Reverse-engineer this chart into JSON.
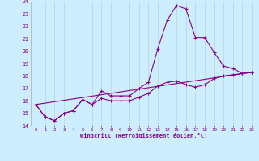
{
  "title": "",
  "xlabel": "Windchill (Refroidissement éolien,°C)",
  "bg_color": "#cceeff",
  "line_color": "#880088",
  "grid_color": "#bbcccc",
  "xlim": [
    -0.5,
    23.5
  ],
  "ylim": [
    14,
    24
  ],
  "yticks": [
    14,
    15,
    16,
    17,
    18,
    19,
    20,
    21,
    22,
    23,
    24
  ],
  "xticks": [
    0,
    1,
    2,
    3,
    4,
    5,
    6,
    7,
    8,
    9,
    10,
    11,
    12,
    13,
    14,
    15,
    16,
    17,
    18,
    19,
    20,
    21,
    22,
    23
  ],
  "line1_x": [
    0,
    1,
    2,
    3,
    4,
    5,
    6,
    7,
    8,
    9,
    10,
    11,
    12,
    13,
    14,
    15,
    16,
    17,
    18,
    19,
    20,
    21,
    22,
    23
  ],
  "line1_y": [
    15.7,
    14.7,
    14.4,
    15.0,
    15.2,
    16.1,
    15.7,
    16.8,
    16.4,
    16.4,
    16.4,
    17.0,
    17.5,
    20.2,
    22.5,
    23.7,
    23.4,
    21.1,
    21.1,
    19.9,
    18.8,
    18.6,
    18.2,
    18.3
  ],
  "line2_x": [
    0,
    1,
    2,
    3,
    4,
    5,
    6,
    7,
    8,
    9,
    10,
    11,
    12,
    13,
    14,
    15,
    16,
    17,
    18,
    19,
    20,
    21,
    22,
    23
  ],
  "line2_y": [
    15.7,
    14.7,
    14.4,
    15.0,
    15.2,
    16.1,
    15.7,
    16.2,
    16.0,
    16.0,
    16.0,
    16.3,
    16.6,
    17.2,
    17.5,
    17.6,
    17.3,
    17.1,
    17.3,
    17.8,
    18.0,
    18.1,
    18.2,
    18.3
  ],
  "line3_x": [
    0,
    23
  ],
  "line3_y": [
    15.7,
    18.3
  ]
}
